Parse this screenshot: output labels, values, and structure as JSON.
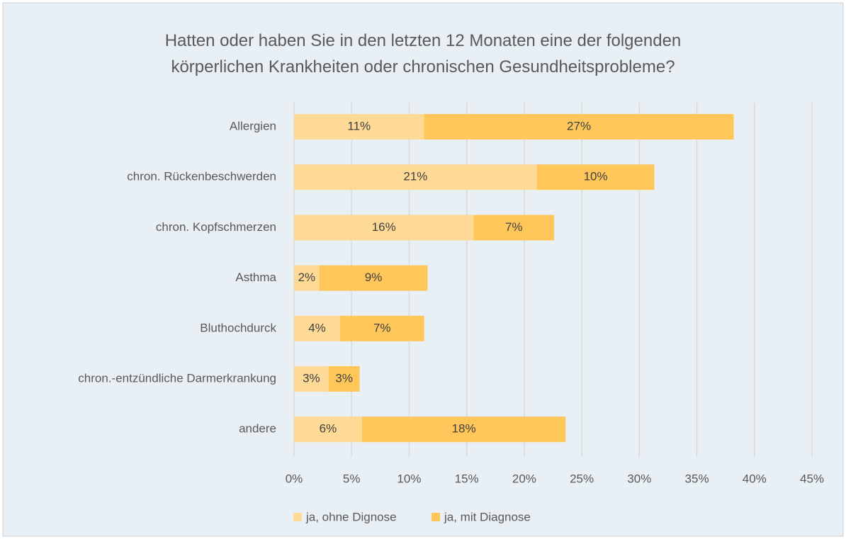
{
  "chart_data": {
    "type": "stacked-barh",
    "title": "Hatten oder haben Sie in den letzten 12 Monaten eine der folgenden körperlichen Krankheiten oder chronischen Gesundheitsprobleme?",
    "categories": [
      "Allergien",
      "chron. Rückenbeschwerden",
      "chron. Kopfschmerzen",
      "Asthma",
      "Bluthochdurck",
      "chron.-entzündliche Darmerkrankung",
      "andere"
    ],
    "series": [
      {
        "name": "ja, ohne Dignose",
        "color": "#ffd996",
        "values": [
          11.3,
          21.1,
          15.6,
          2.2,
          4.0,
          3.0,
          5.9
        ],
        "value_labels": [
          "11%",
          "21%",
          "16%",
          "2%",
          "4%",
          "3%",
          "6%"
        ]
      },
      {
        "name": "ja, mit Diagnose",
        "color": "#ffc65a",
        "values": [
          26.9,
          10.2,
          7.0,
          9.4,
          7.3,
          2.7,
          17.7
        ],
        "value_labels": [
          "27%",
          "10%",
          "7%",
          "9%",
          "7%",
          "3%",
          "18%"
        ]
      }
    ],
    "xlim": [
      0,
      45
    ],
    "xticks": [
      {
        "value": 0,
        "label": "0%"
      },
      {
        "value": 5,
        "label": "5%"
      },
      {
        "value": 10,
        "label": "10%"
      },
      {
        "value": 15,
        "label": "15%"
      },
      {
        "value": 20,
        "label": "20%"
      },
      {
        "value": 25,
        "label": "25%"
      },
      {
        "value": 30,
        "label": "30%"
      },
      {
        "value": 35,
        "label": "35%"
      },
      {
        "value": 40,
        "label": "40%"
      },
      {
        "value": 45,
        "label": "45%"
      }
    ],
    "grid": true,
    "legend": "bottom"
  }
}
